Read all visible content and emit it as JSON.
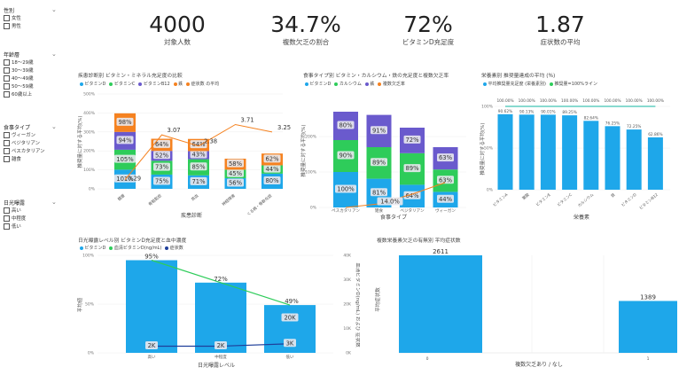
{
  "slicers": [
    {
      "title": "性別",
      "options": [
        "女性",
        "男性"
      ]
    },
    {
      "title": "年齢層",
      "options": [
        "18〜29歳",
        "30〜39歳",
        "40〜49歳",
        "50〜59歳",
        "60歳以上"
      ]
    },
    {
      "title": "食事タイプ",
      "options": [
        "ヴィーガン",
        "ベジタリアン",
        "ペスカタリアン",
        "雑食"
      ]
    },
    {
      "title": "日光曝露",
      "options": [
        "高い",
        "中程度",
        "低い"
      ]
    }
  ],
  "kpis": [
    {
      "value": "4000",
      "label": "対象人数"
    },
    {
      "value": "34.7%",
      "label": "複数欠乏の割合"
    },
    {
      "value": "72%",
      "label": "ビタミンD充足度"
    },
    {
      "value": "1.87",
      "label": "症状数の平均"
    }
  ],
  "colors": {
    "blue": "#1ea7ea",
    "green": "#2ecc5a",
    "purple": "#6a5acd",
    "orange": "#f58220",
    "teal": "#12b5a0",
    "navy": "#1f3f9a"
  },
  "charts": {
    "diagnosis": {
      "title": "疾患診断別 ビタミン・ミネラル充足度の比較",
      "legend": [
        "ビタミンD",
        "ビタミンC",
        "ビタミンB12",
        "鉄",
        "症状数 の平均"
      ],
      "ylabel": "推奨量に対する平均(%)",
      "xlabel": "疾患診断"
    },
    "diet": {
      "title": "食事タイプ別 ビタミン・カルシウム・鉄の充足度と複数欠乏率",
      "legend": [
        "ビタミンD",
        "カルシウム",
        "鉄",
        "複数欠乏率"
      ],
      "ylabel": "推奨量に対する平均(%)",
      "xlabel": "食事タイプ"
    },
    "nutrient": {
      "title": "栄養素別 推奨量達成の平均 (%)",
      "legend": [
        "平均推奨量充足度 (栄養素別)",
        "推奨量=100%ライン"
      ],
      "ylabel": "推奨量に対する平均(%)",
      "xlabel": "栄養素"
    },
    "sun": {
      "title": "日光曝露レベル別 ビタミンD充足度と血中濃度",
      "legend": [
        "ビタミンD",
        "血清ビタミンD(ng/mL)",
        "症状数"
      ],
      "ylabel": "平均値",
      "ylabel2": "血清ビタミンD(ng/mL) および 症状数",
      "xlabel": "日光曝露レベル"
    },
    "multi": {
      "title": "複数栄養素欠乏の有無別 平均症状数",
      "ylabel": "平均症状数",
      "xlabel": "複数欠乏あり / なし"
    }
  },
  "chart_data": [
    {
      "type": "bar",
      "title": "疾患診断別 ビタミン・ミネラル充足度の比較",
      "categories": [
        "健康",
        "骨粗鬆症",
        "貧血",
        "神経障害",
        "くる病・骨軟化症"
      ],
      "series": [
        {
          "name": "ビタミンD",
          "values": [
            101,
            75,
            71,
            56,
            80
          ]
        },
        {
          "name": "ビタミンC",
          "values": [
            105,
            73,
            85,
            45,
            44
          ]
        },
        {
          "name": "ビタミンB12",
          "values": [
            94,
            52,
            43,
            null,
            null
          ]
        },
        {
          "name": "鉄",
          "values": [
            98,
            64,
            64,
            58,
            62
          ]
        },
        {
          "name": "症状数 の平均",
          "values": [
            0.29,
            3.07,
            2.38,
            3.71,
            3.25
          ]
        }
      ],
      "ylim": [
        0,
        500
      ]
    },
    {
      "type": "bar",
      "title": "食事タイプ別 ビタミン・カルシウム・鉄の充足度と複数欠乏率",
      "categories": [
        "ペスカタリアン",
        "雑食",
        "ベジタリアン",
        "ヴィーガン"
      ],
      "series": [
        {
          "name": "ビタミンD",
          "values": [
            100,
            81,
            64,
            44
          ]
        },
        {
          "name": "カルシウム",
          "values": [
            90,
            89,
            89,
            63
          ]
        },
        {
          "name": "鉄",
          "values": [
            80,
            91,
            72,
            63
          ]
        },
        {
          "name": "複数欠乏率",
          "values": [
            null,
            14.0,
            null,
            null
          ]
        }
      ]
    },
    {
      "type": "bar",
      "title": "栄養素別 推奨量達成の平均 (%)",
      "categories": [
        "ビタミンA",
        "葉酸",
        "ビタミンE",
        "ビタミンC",
        "カルシウム",
        "鉄",
        "ビタミンD",
        "ビタミンB12"
      ],
      "series": [
        {
          "name": "平均推奨量充足度 (栄養素別)",
          "values": [
            90.62,
            90.13,
            90.01,
            89.25,
            82.64,
            76.25,
            72.25,
            62.86
          ]
        },
        {
          "name": "推奨量=100%ライン",
          "values": [
            100,
            100,
            100,
            100,
            100,
            100,
            100,
            100
          ]
        }
      ],
      "ylim": [
        0,
        100
      ]
    },
    {
      "type": "bar",
      "title": "日光曝露レベル別 ビタミンD充足度と血中濃度",
      "categories": [
        "高い",
        "中程度",
        "低い"
      ],
      "series": [
        {
          "name": "ビタミンD",
          "values": [
            95,
            72,
            49
          ]
        },
        {
          "name": "血清ビタミンD(ng/mL)",
          "values": [
            2000,
            2000,
            3000
          ],
          "labels": [
            "2K",
            "2K",
            "3K"
          ]
        },
        {
          "name": "症状数",
          "values": [
            null,
            null,
            20000
          ],
          "labels": [
            null,
            null,
            "20K"
          ]
        }
      ],
      "ylim": [
        0,
        100
      ],
      "y2lim": [
        0,
        40000
      ]
    },
    {
      "type": "bar",
      "title": "複数栄養素欠乏の有無別 平均症状数",
      "categories": [
        "0",
        "1"
      ],
      "values": [
        2611,
        1389
      ],
      "ylim": [
        0,
        2611
      ]
    }
  ]
}
